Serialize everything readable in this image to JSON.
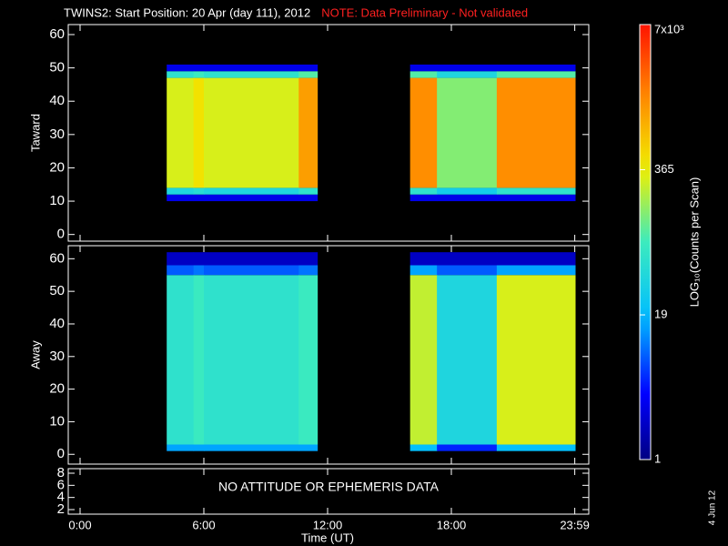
{
  "chart_data": [
    {
      "type": "heatmap",
      "title": "TWINS2: Start Position: 20 Apr (day 111), 2012",
      "note": "NOTE: Data Preliminary - Not validated",
      "ylabel": "Taward",
      "x": [
        4.2,
        5.5,
        6.0,
        10.6,
        11.5,
        16.0,
        17.3,
        20.2,
        24.0
      ],
      "y": [
        10,
        12,
        14,
        47,
        49,
        51
      ],
      "values": [
        [
          3,
          40,
          300,
          60,
          3
        ],
        [
          3,
          50,
          450,
          80,
          3
        ],
        [
          3,
          40,
          300,
          60,
          3
        ],
        [
          3,
          60,
          1200,
          100,
          3
        ],
        [
          null,
          null,
          null,
          null,
          null
        ],
        [
          3,
          60,
          1500,
          100,
          3
        ],
        [
          3,
          30,
          150,
          40,
          3
        ],
        [
          3,
          60,
          1500,
          100,
          3
        ]
      ],
      "ylim": [
        -2,
        63
      ],
      "yticks": [
        0,
        10,
        20,
        30,
        40,
        50,
        60
      ],
      "clim": [
        1,
        7000
      ],
      "cticks": [
        1,
        19,
        365,
        {
          "value": 7000,
          "label": "7x10³"
        }
      ],
      "clabel": "LOG₁₀(Counts per Scan)",
      "log_color": true
    },
    {
      "type": "heatmap",
      "ylabel": "Away",
      "x": [
        4.2,
        5.5,
        6.0,
        10.6,
        11.5,
        16.0,
        17.3,
        20.2,
        24.0
      ],
      "y": [
        1,
        3,
        55,
        58,
        62
      ],
      "values": [
        [
          15,
          60,
          8,
          2
        ],
        [
          15,
          80,
          10,
          2
        ],
        [
          15,
          60,
          8,
          2
        ],
        [
          15,
          80,
          10,
          2
        ],
        [
          null,
          null,
          null,
          null
        ],
        [
          20,
          250,
          15,
          2
        ],
        [
          5,
          40,
          8,
          2
        ],
        [
          20,
          300,
          15,
          2
        ]
      ],
      "ylim": [
        -3,
        64
      ],
      "yticks": [
        0,
        10,
        20,
        30,
        40,
        50,
        60
      ]
    },
    {
      "type": "text",
      "annotation": "NO ATTITUDE OR EPHEMERIS DATA",
      "ylim": [
        1.25,
        8.75
      ],
      "yticks": [
        2,
        4,
        6,
        8
      ],
      "xlim": [
        0,
        24
      ],
      "xticks": [
        {
          "value": 0,
          "label": "0:00"
        },
        {
          "value": 6,
          "label": "6:00"
        },
        {
          "value": 12,
          "label": "12:00"
        },
        {
          "value": 18,
          "label": "18:00"
        },
        {
          "value": 23.983,
          "label": "23:59"
        }
      ],
      "xlabel": "Time (UT)"
    }
  ],
  "footer": {
    "date": "4 Jun 12"
  }
}
